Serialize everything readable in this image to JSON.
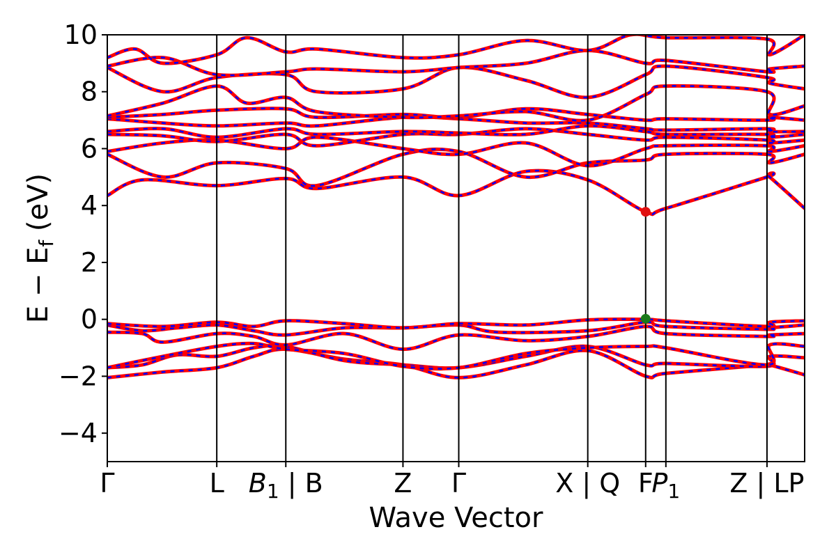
{
  "chart_data": {
    "type": "line",
    "xlabel": "Wave Vector",
    "ylabel": "E − E",
    "ylabel_sub": "f",
    "ylabel_unit": " (eV)",
    "ylim": [
      -5,
      10
    ],
    "yticks": [
      -4,
      -2,
      0,
      2,
      4,
      6,
      8,
      10
    ],
    "ytick_labels": [
      "−4",
      "−2",
      "0",
      "2",
      "4",
      "6",
      "8",
      "10"
    ],
    "xlim": [
      0,
      1
    ],
    "high_symmetry_points": [
      {
        "x": 0.0,
        "label": "Γ"
      },
      {
        "x": 0.157,
        "label": "L"
      },
      {
        "x": 0.256,
        "label_italic": "B",
        "label_sub": "1",
        "label_rest": " | B"
      },
      {
        "x": 0.424,
        "label": "Z"
      },
      {
        "x": 0.504,
        "label": "Γ"
      },
      {
        "x": 0.689,
        "label": "X | Q"
      },
      {
        "x": 0.772,
        "label": "F"
      },
      {
        "x": 0.801,
        "label_italic": "P",
        "label_sub": "1"
      },
      {
        "x": 0.946,
        "label": "Z | LP"
      }
    ],
    "band_style": {
      "solid_color": "#ff0000",
      "dashed_color": "#0000ff"
    },
    "markers": [
      {
        "name": "CBM",
        "x": 0.772,
        "y": 3.78,
        "color": "#e01010"
      },
      {
        "name": "VBM",
        "x": 0.772,
        "y": 0.02,
        "color": "#1a7a1a"
      }
    ],
    "series": [
      {
        "values": [
          [
            0,
            -2.05
          ],
          [
            0.08,
            -1.85
          ],
          [
            0.157,
            -1.7
          ],
          [
            0.21,
            -1.3
          ],
          [
            0.256,
            -1.05
          ],
          [
            0.34,
            -1.4
          ],
          [
            0.424,
            -1.6
          ],
          [
            0.504,
            -2.05
          ],
          [
            0.6,
            -1.6
          ],
          [
            0.689,
            -1.1
          ],
          [
            0.772,
            -2.0
          ],
          [
            0.801,
            -1.9
          ],
          [
            0.946,
            -1.6
          ],
          [
            0.95,
            -1.6
          ],
          [
            1.0,
            -1.95
          ]
        ]
      },
      {
        "values": [
          [
            0,
            -1.7
          ],
          [
            0.05,
            -1.6
          ],
          [
            0.1,
            -1.25
          ],
          [
            0.157,
            -1.3
          ],
          [
            0.21,
            -1.0
          ],
          [
            0.256,
            -0.95
          ],
          [
            0.34,
            -1.45
          ],
          [
            0.424,
            -1.6
          ],
          [
            0.504,
            -1.7
          ],
          [
            0.6,
            -1.3
          ],
          [
            0.689,
            -0.95
          ],
          [
            0.772,
            -1.6
          ],
          [
            0.801,
            -1.55
          ],
          [
            0.946,
            -1.65
          ],
          [
            0.95,
            -1.3
          ],
          [
            1.0,
            -1.35
          ]
        ]
      },
      {
        "values": [
          [
            0,
            -1.7
          ],
          [
            0.08,
            -1.3
          ],
          [
            0.157,
            -0.95
          ],
          [
            0.21,
            -0.85
          ],
          [
            0.256,
            -1.05
          ],
          [
            0.34,
            -1.2
          ],
          [
            0.424,
            -1.65
          ],
          [
            0.504,
            -1.7
          ],
          [
            0.6,
            -1.2
          ],
          [
            0.689,
            -1.0
          ],
          [
            0.772,
            -0.95
          ],
          [
            0.801,
            -1.0
          ],
          [
            0.946,
            -1.6
          ],
          [
            0.95,
            -0.9
          ],
          [
            1.0,
            -0.95
          ]
        ]
      },
      {
        "values": [
          [
            0,
            -0.45
          ],
          [
            0.05,
            -0.5
          ],
          [
            0.08,
            -0.8
          ],
          [
            0.157,
            -0.5
          ],
          [
            0.21,
            -0.6
          ],
          [
            0.256,
            -0.9
          ],
          [
            0.34,
            -0.5
          ],
          [
            0.424,
            -1.05
          ],
          [
            0.504,
            -0.55
          ],
          [
            0.6,
            -0.75
          ],
          [
            0.689,
            -0.6
          ],
          [
            0.772,
            -0.25
          ],
          [
            0.801,
            -0.5
          ],
          [
            0.946,
            -0.6
          ],
          [
            0.95,
            -0.55
          ],
          [
            1.0,
            -0.5
          ]
        ]
      },
      {
        "values": [
          [
            0,
            -0.2
          ],
          [
            0.05,
            -0.4
          ],
          [
            0.1,
            -0.3
          ],
          [
            0.157,
            -0.2
          ],
          [
            0.21,
            -0.4
          ],
          [
            0.256,
            -0.55
          ],
          [
            0.34,
            -0.3
          ],
          [
            0.424,
            -0.3
          ],
          [
            0.504,
            -0.2
          ],
          [
            0.56,
            -0.45
          ],
          [
            0.689,
            -0.4
          ],
          [
            0.772,
            -0.1
          ],
          [
            0.801,
            -0.25
          ],
          [
            0.946,
            -0.35
          ],
          [
            0.95,
            -0.3
          ],
          [
            1.0,
            -0.2
          ]
        ]
      },
      {
        "values": [
          [
            0,
            -0.15
          ],
          [
            0.08,
            -0.25
          ],
          [
            0.157,
            -0.1
          ],
          [
            0.21,
            -0.25
          ],
          [
            0.256,
            -0.05
          ],
          [
            0.34,
            -0.15
          ],
          [
            0.424,
            -0.3
          ],
          [
            0.504,
            -0.15
          ],
          [
            0.6,
            -0.2
          ],
          [
            0.689,
            -0.02
          ],
          [
            0.772,
            0.0
          ],
          [
            0.801,
            -0.05
          ],
          [
            0.946,
            -0.25
          ],
          [
            0.95,
            -0.1
          ],
          [
            1.0,
            -0.05
          ]
        ]
      },
      {
        "values": [
          [
            0,
            4.35
          ],
          [
            0.05,
            4.9
          ],
          [
            0.157,
            4.7
          ],
          [
            0.256,
            4.95
          ],
          [
            0.3,
            4.6
          ],
          [
            0.424,
            5.0
          ],
          [
            0.504,
            4.35
          ],
          [
            0.6,
            5.2
          ],
          [
            0.689,
            4.9
          ],
          [
            0.772,
            3.78
          ],
          [
            0.801,
            3.9
          ],
          [
            0.946,
            5.0
          ],
          [
            0.95,
            5.0
          ],
          [
            1.0,
            3.9
          ]
        ]
      },
      {
        "values": [
          [
            0,
            5.8
          ],
          [
            0.08,
            5.0
          ],
          [
            0.157,
            5.5
          ],
          [
            0.256,
            5.3
          ],
          [
            0.3,
            4.7
          ],
          [
            0.424,
            5.8
          ],
          [
            0.504,
            5.9
          ],
          [
            0.6,
            5.0
          ],
          [
            0.689,
            5.5
          ],
          [
            0.772,
            5.6
          ],
          [
            0.801,
            5.8
          ],
          [
            0.946,
            5.8
          ],
          [
            0.95,
            5.5
          ],
          [
            1.0,
            5.8
          ]
        ]
      },
      {
        "values": [
          [
            0,
            5.9
          ],
          [
            0.08,
            6.2
          ],
          [
            0.157,
            6.3
          ],
          [
            0.256,
            6.0
          ],
          [
            0.3,
            6.4
          ],
          [
            0.424,
            6.0
          ],
          [
            0.504,
            5.8
          ],
          [
            0.6,
            6.2
          ],
          [
            0.689,
            5.4
          ],
          [
            0.772,
            6.0
          ],
          [
            0.801,
            6.1
          ],
          [
            0.946,
            6.1
          ],
          [
            0.95,
            5.9
          ],
          [
            1.0,
            6.1
          ]
        ]
      },
      {
        "values": [
          [
            0,
            6.5
          ],
          [
            0.08,
            6.45
          ],
          [
            0.157,
            6.25
          ],
          [
            0.256,
            6.5
          ],
          [
            0.3,
            6.1
          ],
          [
            0.424,
            6.5
          ],
          [
            0.504,
            6.5
          ],
          [
            0.6,
            6.7
          ],
          [
            0.689,
            6.5
          ],
          [
            0.772,
            6.3
          ],
          [
            0.801,
            6.4
          ],
          [
            0.946,
            6.3
          ],
          [
            0.95,
            6.2
          ],
          [
            1.0,
            6.3
          ]
        ]
      },
      {
        "values": [
          [
            0,
            6.6
          ],
          [
            0.08,
            6.7
          ],
          [
            0.157,
            6.4
          ],
          [
            0.256,
            6.7
          ],
          [
            0.3,
            6.5
          ],
          [
            0.424,
            6.6
          ],
          [
            0.504,
            6.55
          ],
          [
            0.6,
            6.5
          ],
          [
            0.689,
            6.8
          ],
          [
            0.772,
            6.6
          ],
          [
            0.801,
            6.5
          ],
          [
            0.946,
            6.5
          ],
          [
            0.95,
            6.4
          ],
          [
            1.0,
            6.5
          ]
        ]
      },
      {
        "values": [
          [
            0,
            7.05
          ],
          [
            0.08,
            6.9
          ],
          [
            0.157,
            6.8
          ],
          [
            0.256,
            6.9
          ],
          [
            0.3,
            6.8
          ],
          [
            0.424,
            7.1
          ],
          [
            0.504,
            7.05
          ],
          [
            0.6,
            6.9
          ],
          [
            0.689,
            6.9
          ],
          [
            0.772,
            6.7
          ],
          [
            0.801,
            6.65
          ],
          [
            0.946,
            6.7
          ],
          [
            0.95,
            6.6
          ],
          [
            1.0,
            6.6
          ]
        ]
      },
      {
        "values": [
          [
            0,
            7.1
          ],
          [
            0.08,
            7.2
          ],
          [
            0.157,
            7.35
          ],
          [
            0.256,
            7.4
          ],
          [
            0.3,
            7.1
          ],
          [
            0.424,
            7.2
          ],
          [
            0.504,
            7.1
          ],
          [
            0.6,
            7.4
          ],
          [
            0.689,
            7.2
          ],
          [
            0.772,
            7.0
          ],
          [
            0.801,
            7.05
          ],
          [
            0.946,
            7.0
          ],
          [
            0.95,
            7.1
          ],
          [
            1.0,
            7.0
          ]
        ]
      },
      {
        "values": [
          [
            0,
            7.15
          ],
          [
            0.08,
            7.6
          ],
          [
            0.157,
            8.2
          ],
          [
            0.2,
            7.6
          ],
          [
            0.256,
            7.8
          ],
          [
            0.3,
            7.3
          ],
          [
            0.424,
            7.1
          ],
          [
            0.504,
            7.15
          ],
          [
            0.6,
            7.3
          ],
          [
            0.689,
            7.0
          ],
          [
            0.772,
            7.9
          ],
          [
            0.801,
            8.2
          ],
          [
            0.946,
            8.0
          ],
          [
            0.95,
            7.2
          ],
          [
            1.0,
            7.5
          ]
        ]
      },
      {
        "values": [
          [
            0,
            8.85
          ],
          [
            0.08,
            8.0
          ],
          [
            0.157,
            8.5
          ],
          [
            0.256,
            8.6
          ],
          [
            0.3,
            8.0
          ],
          [
            0.424,
            8.1
          ],
          [
            0.504,
            8.85
          ],
          [
            0.6,
            8.4
          ],
          [
            0.689,
            7.8
          ],
          [
            0.772,
            8.6
          ],
          [
            0.801,
            8.9
          ],
          [
            0.946,
            8.5
          ],
          [
            0.95,
            8.3
          ],
          [
            1.0,
            8.1
          ]
        ]
      },
      {
        "values": [
          [
            0,
            8.9
          ],
          [
            0.08,
            9.2
          ],
          [
            0.157,
            8.6
          ],
          [
            0.256,
            8.7
          ],
          [
            0.3,
            8.8
          ],
          [
            0.424,
            8.7
          ],
          [
            0.504,
            8.85
          ],
          [
            0.6,
            9.0
          ],
          [
            0.689,
            9.45
          ],
          [
            0.772,
            9.0
          ],
          [
            0.801,
            9.1
          ],
          [
            0.946,
            8.7
          ],
          [
            0.95,
            8.8
          ],
          [
            1.0,
            8.9
          ]
        ]
      },
      {
        "values": [
          [
            0,
            9.2
          ],
          [
            0.04,
            9.5
          ],
          [
            0.08,
            9.0
          ],
          [
            0.157,
            9.3
          ],
          [
            0.2,
            9.9
          ],
          [
            0.256,
            9.4
          ],
          [
            0.3,
            9.5
          ],
          [
            0.424,
            9.2
          ],
          [
            0.504,
            9.3
          ],
          [
            0.6,
            9.8
          ],
          [
            0.689,
            9.45
          ],
          [
            0.75,
            10.0
          ],
          [
            0.801,
            9.9
          ],
          [
            0.946,
            9.85
          ],
          [
            0.95,
            9.3
          ],
          [
            1.0,
            10.0
          ]
        ]
      }
    ]
  }
}
